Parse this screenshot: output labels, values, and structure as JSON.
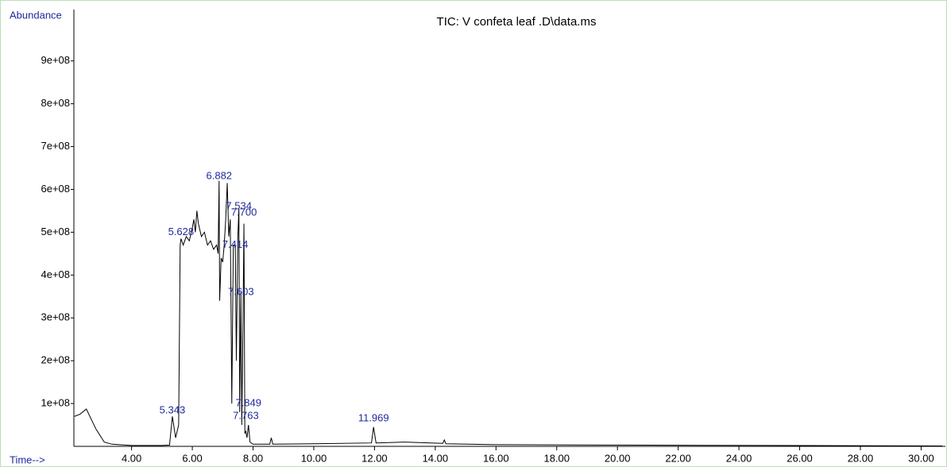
{
  "chart_data": {
    "type": "line",
    "title": "TIC: V confeta leaf .D\\data.ms",
    "y_label": "Abundance",
    "x_label": "Time-->",
    "color": "#000000",
    "label_color": "#1f2a9c",
    "grid": false,
    "xlim": [
      2.1,
      30.8
    ],
    "ylim": [
      0,
      1020000000
    ],
    "xticks": [
      {
        "value": 4,
        "label": "4.00"
      },
      {
        "value": 6,
        "label": "6.00"
      },
      {
        "value": 8,
        "label": "8.00"
      },
      {
        "value": 10,
        "label": "10.00"
      },
      {
        "value": 12,
        "label": "12.00"
      },
      {
        "value": 14,
        "label": "14.00"
      },
      {
        "value": 16,
        "label": "16.00"
      },
      {
        "value": 18,
        "label": "18.00"
      },
      {
        "value": 20,
        "label": "20.00"
      },
      {
        "value": 22,
        "label": "22.00"
      },
      {
        "value": 24,
        "label": "24.00"
      },
      {
        "value": 26,
        "label": "26.00"
      },
      {
        "value": 28,
        "label": "28.00"
      },
      {
        "value": 30,
        "label": "30.00"
      }
    ],
    "yticks": [
      {
        "value": 100000000,
        "label": "1e+08"
      },
      {
        "value": 200000000,
        "label": "2e+08"
      },
      {
        "value": 300000000,
        "label": "3e+08"
      },
      {
        "value": 400000000,
        "label": "4e+08"
      },
      {
        "value": 500000000,
        "label": "5e+08"
      },
      {
        "value": 600000000,
        "label": "6e+08"
      },
      {
        "value": 700000000,
        "label": "7e+08"
      },
      {
        "value": 800000000,
        "label": "8e+08"
      },
      {
        "value": 900000000,
        "label": "9e+08"
      }
    ],
    "x": [
      2.12,
      2.3,
      2.51,
      2.83,
      3.1,
      3.35,
      4.0,
      5.0,
      5.25,
      5.343,
      5.45,
      5.55,
      5.6,
      5.628,
      5.7,
      5.8,
      5.9,
      6.0,
      6.05,
      6.1,
      6.15,
      6.2,
      6.3,
      6.4,
      6.5,
      6.6,
      6.7,
      6.8,
      6.85,
      6.882,
      6.9,
      6.95,
      7.0,
      7.05,
      7.1,
      7.15,
      7.2,
      7.25,
      7.3,
      7.35,
      7.414,
      7.45,
      7.5,
      7.534,
      7.56,
      7.6,
      7.63,
      7.67,
      7.7,
      7.73,
      7.763,
      7.8,
      7.849,
      7.9,
      8.0,
      8.55,
      8.6,
      8.65,
      10.0,
      11.9,
      11.969,
      12.05,
      13.0,
      14.25,
      14.3,
      14.35,
      16.0,
      20.0,
      25.0,
      30.7
    ],
    "values": [
      70000000,
      75000000,
      87000000,
      40000000,
      10000000,
      5000000,
      2000000,
      2000000,
      3000000,
      70000000,
      20000000,
      50000000,
      470000000,
      485000000,
      470000000,
      490000000,
      480000000,
      510000000,
      530000000,
      500000000,
      550000000,
      520000000,
      490000000,
      500000000,
      470000000,
      480000000,
      460000000,
      470000000,
      450000000,
      620000000,
      340000000,
      440000000,
      430000000,
      470000000,
      530000000,
      615000000,
      490000000,
      530000000,
      100000000,
      470000000,
      470000000,
      200000000,
      490000000,
      555000000,
      80000000,
      360000000,
      50000000,
      300000000,
      520000000,
      30000000,
      35000000,
      20000000,
      50000000,
      10000000,
      5000000,
      5000000,
      20000000,
      5000000,
      6000000,
      8000000,
      45000000,
      8000000,
      10000000,
      7000000,
      15000000,
      6000000,
      4000000,
      3000000,
      2000000,
      1000000
    ],
    "peaks": [
      {
        "label": "5.343",
        "x": 5.343,
        "y": 83000000
      },
      {
        "label": "5.628",
        "x": 5.628,
        "y": 500000000
      },
      {
        "label": "6.882",
        "x": 6.882,
        "y": 630000000
      },
      {
        "label": "7.534",
        "x": 7.534,
        "y": 560000000
      },
      {
        "label": "7.700",
        "x": 7.7,
        "y": 545000000
      },
      {
        "label": "7.414",
        "x": 7.414,
        "y": 470000000
      },
      {
        "label": "7.603",
        "x": 7.603,
        "y": 360000000
      },
      {
        "label": "7.849",
        "x": 7.849,
        "y": 100000000
      },
      {
        "label": "7.763",
        "x": 7.763,
        "y": 70000000
      },
      {
        "label": "11.969",
        "x": 11.969,
        "y": 65000000
      }
    ]
  }
}
